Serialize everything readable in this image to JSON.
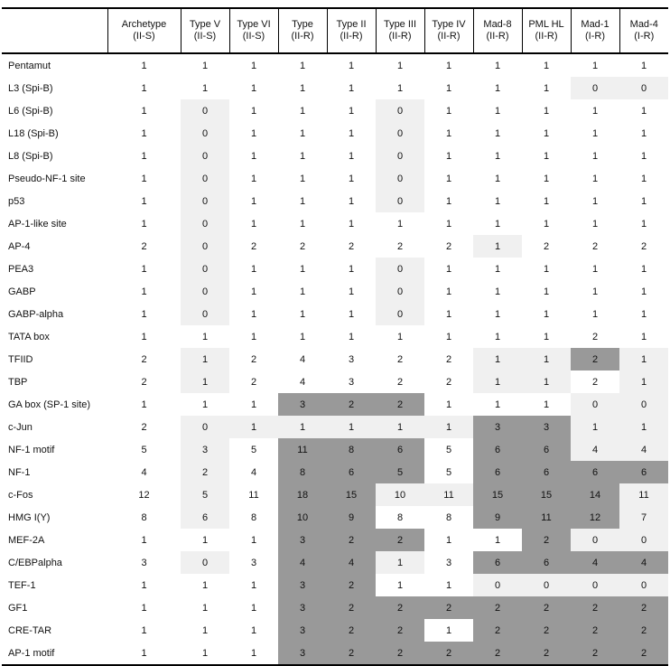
{
  "colors": {
    "light_cell": "#f0f0f0",
    "dark_cell": "#999999",
    "border": "#000000",
    "text": "#111111"
  },
  "table": {
    "corner_label": "",
    "columns": [
      {
        "line1": "Archetype",
        "line2": "(II-S)"
      },
      {
        "line1": "Type V",
        "line2": "(II-S)"
      },
      {
        "line1": "Type VI",
        "line2": "(II-S)"
      },
      {
        "line1": "Type",
        "line2": "(II-R)"
      },
      {
        "line1": "Type II",
        "line2": "(II-R)"
      },
      {
        "line1": "Type III",
        "line2": "(II-R)"
      },
      {
        "line1": "Type IV",
        "line2": "(II-R)"
      },
      {
        "line1": "Mad-8",
        "line2": "(II-R)"
      },
      {
        "line1": "PML HL",
        "line2": "(II-R)"
      },
      {
        "line1": "Mad-1",
        "line2": "(I-R)"
      },
      {
        "line1": "Mad-4",
        "line2": "(I-R)"
      }
    ],
    "shade_key": {
      "w": "white",
      "l": "light-gray",
      "d": "dark-gray"
    },
    "rows": [
      {
        "label": "Pentamut",
        "values": [
          1,
          1,
          1,
          1,
          1,
          1,
          1,
          1,
          1,
          1,
          1
        ],
        "shades": "wwwwwwwwwww"
      },
      {
        "label": "L3 (Spi-B)",
        "values": [
          1,
          1,
          1,
          1,
          1,
          1,
          1,
          1,
          1,
          0,
          0
        ],
        "shades": "wwwwwwwwwll"
      },
      {
        "label": "L6 (Spi-B)",
        "values": [
          1,
          0,
          1,
          1,
          1,
          0,
          1,
          1,
          1,
          1,
          1
        ],
        "shades": "wlwwwlwwwww"
      },
      {
        "label": "L18 (Spi-B)",
        "values": [
          1,
          0,
          1,
          1,
          1,
          0,
          1,
          1,
          1,
          1,
          1
        ],
        "shades": "wlwwwlwwwww"
      },
      {
        "label": "L8 (Spi-B)",
        "values": [
          1,
          0,
          1,
          1,
          1,
          0,
          1,
          1,
          1,
          1,
          1
        ],
        "shades": "wlwwwlwwwww"
      },
      {
        "label": "Pseudo-NF-1 site",
        "values": [
          1,
          0,
          1,
          1,
          1,
          0,
          1,
          1,
          1,
          1,
          1
        ],
        "shades": "wlwwwlwwwww"
      },
      {
        "label": "p53",
        "values": [
          1,
          0,
          1,
          1,
          1,
          0,
          1,
          1,
          1,
          1,
          1
        ],
        "shades": "wlwwwlwwwww"
      },
      {
        "label": "AP-1-like site",
        "values": [
          1,
          0,
          1,
          1,
          1,
          1,
          1,
          1,
          1,
          1,
          1
        ],
        "shades": "wlwwwwwwwww"
      },
      {
        "label": "AP-4",
        "values": [
          2,
          0,
          2,
          2,
          2,
          2,
          2,
          1,
          2,
          2,
          2
        ],
        "shades": "wlwwwwwlwww"
      },
      {
        "label": "PEA3",
        "values": [
          1,
          0,
          1,
          1,
          1,
          0,
          1,
          1,
          1,
          1,
          1
        ],
        "shades": "wlwwwlwwwww"
      },
      {
        "label": "GABP",
        "values": [
          1,
          0,
          1,
          1,
          1,
          0,
          1,
          1,
          1,
          1,
          1
        ],
        "shades": "wlwwwlwwwww"
      },
      {
        "label": "GABP-alpha",
        "values": [
          1,
          0,
          1,
          1,
          1,
          0,
          1,
          1,
          1,
          1,
          1
        ],
        "shades": "wlwwwlwwwww"
      },
      {
        "label": "TATA box",
        "values": [
          1,
          1,
          1,
          1,
          1,
          1,
          1,
          1,
          1,
          2,
          1
        ],
        "shades": "wwwwwwwwwww"
      },
      {
        "label": "TFIID",
        "values": [
          2,
          1,
          2,
          4,
          3,
          2,
          2,
          1,
          1,
          2,
          1
        ],
        "shades": "wlwwwwwlldl"
      },
      {
        "label": "TBP",
        "values": [
          2,
          1,
          2,
          4,
          3,
          2,
          2,
          1,
          1,
          2,
          1
        ],
        "shades": "wlwwwwwllwl"
      },
      {
        "label": "GA box (SP-1 site)",
        "values": [
          1,
          1,
          1,
          3,
          2,
          2,
          1,
          1,
          1,
          0,
          0
        ],
        "shades": "wwwdddwwwll"
      },
      {
        "label": "c-Jun",
        "values": [
          2,
          0,
          1,
          1,
          1,
          1,
          1,
          3,
          3,
          1,
          1
        ],
        "shades": "wllllllddll"
      },
      {
        "label": "NF-1 motif",
        "values": [
          5,
          3,
          5,
          11,
          8,
          6,
          5,
          6,
          6,
          4,
          4
        ],
        "shades": "wlwdddwddll"
      },
      {
        "label": "NF-1",
        "values": [
          4,
          2,
          4,
          8,
          6,
          5,
          5,
          6,
          6,
          6,
          6
        ],
        "shades": "wlwdddwdddd"
      },
      {
        "label": "c-Fos",
        "values": [
          12,
          5,
          11,
          18,
          15,
          10,
          11,
          15,
          15,
          14,
          11
        ],
        "shades": "wlwddlldddl"
      },
      {
        "label": "HMG I(Y)",
        "values": [
          8,
          6,
          8,
          10,
          9,
          8,
          8,
          9,
          11,
          12,
          7
        ],
        "shades": "wlwddwwdddl"
      },
      {
        "label": "MEF-2A",
        "values": [
          1,
          1,
          1,
          3,
          2,
          2,
          1,
          1,
          2,
          0,
          0
        ],
        "shades": "wwwdddwwdll"
      },
      {
        "label": "C/EBPalpha",
        "values": [
          3,
          0,
          3,
          4,
          4,
          1,
          3,
          6,
          6,
          4,
          4
        ],
        "shades": "wlwddlwdddd"
      },
      {
        "label": "TEF-1",
        "values": [
          1,
          1,
          1,
          3,
          2,
          1,
          1,
          0,
          0,
          0,
          0
        ],
        "shades": "wwwddwwllll"
      },
      {
        "label": "GF1",
        "values": [
          1,
          1,
          1,
          3,
          2,
          2,
          2,
          2,
          2,
          2,
          2
        ],
        "shades": "wwwdddddddd"
      },
      {
        "label": "CRE-TAR",
        "values": [
          1,
          1,
          1,
          3,
          2,
          2,
          1,
          2,
          2,
          2,
          2
        ],
        "shades": "wwwdddwdddd"
      },
      {
        "label": "AP-1 motif",
        "values": [
          1,
          1,
          1,
          3,
          2,
          2,
          2,
          2,
          2,
          2,
          2
        ],
        "shades": "wwwdddddddd"
      }
    ]
  }
}
